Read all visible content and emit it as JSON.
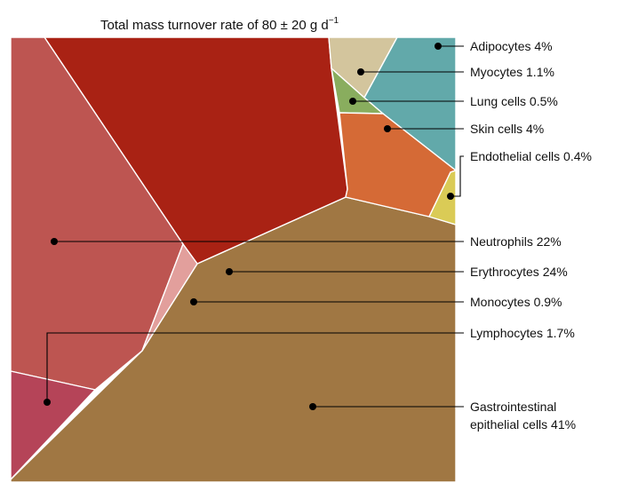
{
  "chart_data": {
    "type": "voronoi-treemap",
    "title": "Total mass turnover rate of 80 ± 20 g d",
    "title_superscript": "−1",
    "cells": [
      {
        "name": "Adipocytes",
        "percent": 4,
        "label": "Adipocytes 4%",
        "color": "#62A9AA"
      },
      {
        "name": "Myocytes",
        "percent": 1.1,
        "label": "Myocytes 1.1%",
        "color": "#D3C59D"
      },
      {
        "name": "Lung cells",
        "percent": 0.5,
        "label": "Lung cells 0.5%",
        "color": "#89AD5E"
      },
      {
        "name": "Skin cells",
        "percent": 4,
        "label": "Skin cells 4%",
        "color": "#D56A36"
      },
      {
        "name": "Endothelial cells",
        "percent": 0.4,
        "label": "Endothelial cells 0.4%",
        "color": "#DACB56"
      },
      {
        "name": "Neutrophils",
        "percent": 22,
        "label": "Neutrophils 22%",
        "color": "#BD5551"
      },
      {
        "name": "Erythrocytes",
        "percent": 24,
        "label": "Erythrocytes 24%",
        "color": "#A92214"
      },
      {
        "name": "Monocytes",
        "percent": 0.9,
        "label": "Monocytes 0.9%",
        "color": "#E29F9C"
      },
      {
        "name": "Lymphocytes",
        "percent": 1.7,
        "label": "Lymphocytes 1.7%",
        "color": "#B54458"
      },
      {
        "name": "Gastrointestinal epithelial cells",
        "percent": 41,
        "label": "Gastrointestinal",
        "label_line2": "epithelial cells 41%",
        "color": "#A07743"
      }
    ]
  }
}
